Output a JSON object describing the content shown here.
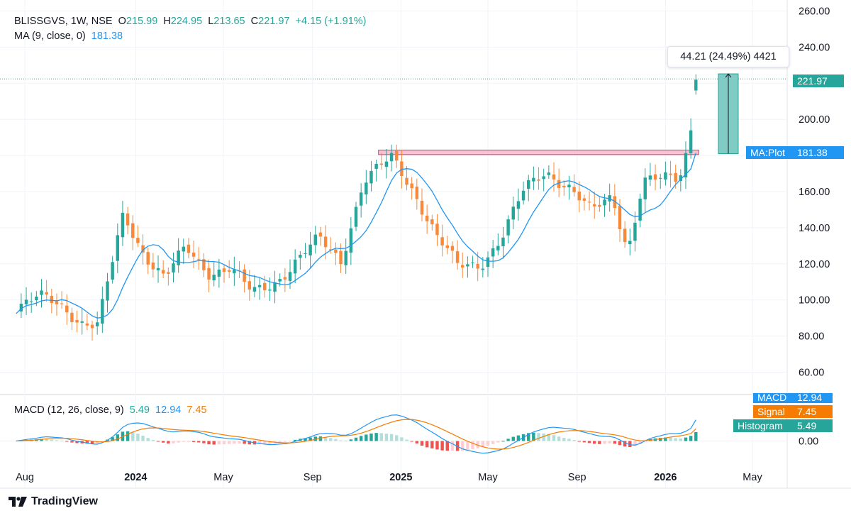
{
  "header": {
    "symbol": "BLISSGVS, 1W, NSE",
    "open_label": "O",
    "open": "215.99",
    "high_label": "H",
    "high": "224.95",
    "low_label": "L",
    "low": "213.65",
    "close_label": "C",
    "close": "221.97",
    "change": "+4.15 (+1.91%)",
    "ma_label": "MA (9, close, 0)",
    "ma_value": "181.38",
    "macd_label": "MACD (12, 26, close, 9)",
    "macd_hist": "5.49",
    "macd_line": "12.94",
    "macd_signal": "7.45"
  },
  "tags": {
    "last_price": "221.97",
    "ma_name": "MA:Plot",
    "ma_value": "181.38",
    "macd_name": "MACD",
    "macd_value": "12.94",
    "signal_name": "Signal",
    "signal_value": "7.45",
    "hist_name": "Histogram",
    "hist_value": "5.49"
  },
  "measure_label": "44.21 (24.49%) 4421",
  "footer": {
    "brand": "TradingView"
  },
  "colors": {
    "up": "#26a69a",
    "down": "#f7893b",
    "ma": "#2196f3",
    "macd": "#2196f3",
    "signal": "#f57c00",
    "hist_up": "#26a69a",
    "hist_up_light": "#b2dfdb",
    "hist_down": "#ef5350",
    "hist_down_light": "#ffcdd2",
    "resistance_fill": "#f8bbd0",
    "resistance_stroke": "#e91e63",
    "measure_fill": "#80cbc4"
  },
  "chart_data": {
    "type": "candlestick",
    "timeframe": "1W",
    "price_axis": {
      "ticks": [
        60,
        80,
        100,
        120,
        140,
        160,
        180,
        200,
        220,
        240,
        260
      ],
      "tick_labels": [
        "60.00",
        "80.00",
        "100.00",
        "120.00",
        "140.00",
        "160.00",
        "180.00",
        "200.00",
        "",
        "240.00",
        "260.00"
      ],
      "range": [
        50,
        262
      ]
    },
    "macd_axis": {
      "ticks": [
        0
      ],
      "tick_labels": [
        "0.00"
      ]
    },
    "time_axis": {
      "labels": [
        {
          "text": "Aug",
          "date": "2023-08-01"
        },
        {
          "text": "2024",
          "date": "2024-01-01"
        },
        {
          "text": "May",
          "date": "2024-05-01"
        },
        {
          "text": "Sep",
          "date": "2024-09-01"
        },
        {
          "text": "2025",
          "date": "2025-01-01"
        },
        {
          "text": "May",
          "date": "2025-05-01"
        },
        {
          "text": "Sep",
          "date": "2025-09-01"
        },
        {
          "text": "2026",
          "date": "2026-01-01"
        },
        {
          "text": "May",
          "date": "2026-05-01"
        }
      ]
    },
    "resistance_zone": {
      "from_price": 180.5,
      "to_price": 183.0,
      "start_date": "2024-12-01"
    },
    "measure": {
      "from_price": 181.0,
      "to_price": 225.2,
      "label": "44.21 (24.49%) 4421"
    },
    "price_key_points": [
      {
        "date": "2023-07-20",
        "close": 96
      },
      {
        "date": "2023-08-20",
        "close": 101
      },
      {
        "date": "2023-09-20",
        "close": 97
      },
      {
        "date": "2023-10-20",
        "close": 88
      },
      {
        "date": "2023-11-10",
        "close": 86
      },
      {
        "date": "2023-12-01",
        "close": 122
      },
      {
        "date": "2023-12-15",
        "close": 147
      },
      {
        "date": "2024-01-10",
        "close": 128
      },
      {
        "date": "2024-02-10",
        "close": 112
      },
      {
        "date": "2024-03-10",
        "close": 128
      },
      {
        "date": "2024-04-10",
        "close": 116
      },
      {
        "date": "2024-05-10",
        "close": 118
      },
      {
        "date": "2024-06-10",
        "close": 103
      },
      {
        "date": "2024-07-10",
        "close": 110
      },
      {
        "date": "2024-08-10",
        "close": 122
      },
      {
        "date": "2024-09-10",
        "close": 133
      },
      {
        "date": "2024-10-10",
        "close": 122
      },
      {
        "date": "2024-11-10",
        "close": 166
      },
      {
        "date": "2024-12-20",
        "close": 178
      },
      {
        "date": "2025-01-20",
        "close": 160
      },
      {
        "date": "2025-02-20",
        "close": 135
      },
      {
        "date": "2025-03-20",
        "close": 118
      },
      {
        "date": "2025-04-20",
        "close": 120
      },
      {
        "date": "2025-05-20",
        "close": 135
      },
      {
        "date": "2025-06-20",
        "close": 160
      },
      {
        "date": "2025-07-20",
        "close": 172
      },
      {
        "date": "2025-08-20",
        "close": 163
      },
      {
        "date": "2025-09-20",
        "close": 148
      },
      {
        "date": "2025-10-20",
        "close": 158
      },
      {
        "date": "2025-11-10",
        "close": 128
      },
      {
        "date": "2025-12-01",
        "close": 165
      },
      {
        "date": "2025-12-25",
        "close": 166
      },
      {
        "date": "2026-01-20",
        "close": 168
      },
      {
        "date": "2026-02-01",
        "close": 186
      },
      {
        "date": "2026-02-15",
        "close": 221.97
      }
    ],
    "last_candle": {
      "open": 215.99,
      "high": 224.95,
      "low": 213.65,
      "close": 221.97
    },
    "series": [
      {
        "name": "MA (9, close, 0)",
        "last": 181.38
      },
      {
        "name": "MACD",
        "last": 12.94
      },
      {
        "name": "Signal",
        "last": 7.45
      },
      {
        "name": "Histogram",
        "last": 5.49
      }
    ]
  }
}
